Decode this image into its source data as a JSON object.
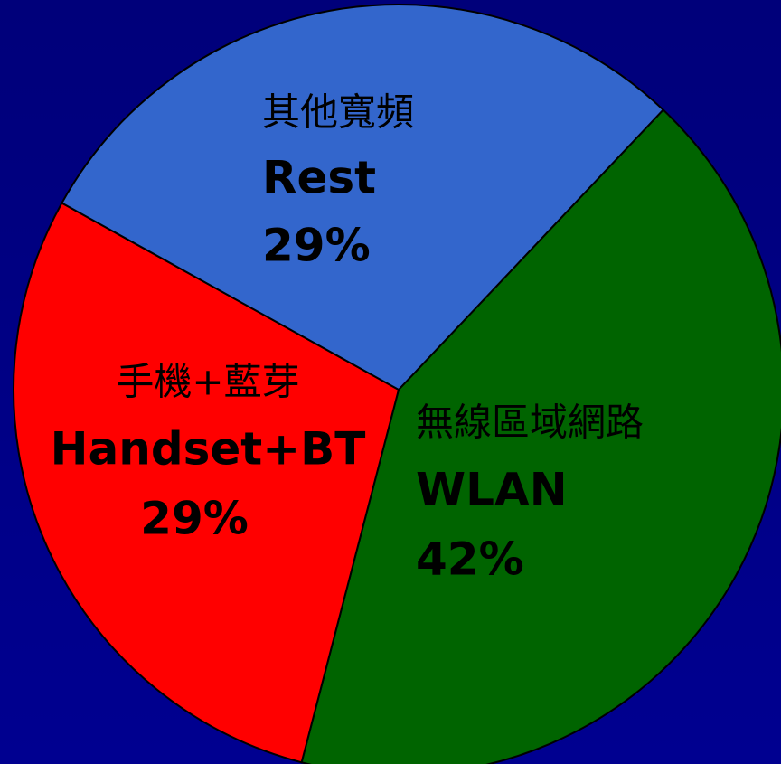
{
  "chart_data": {
    "type": "pie",
    "categories": [
      "WLAN",
      "Handset+BT",
      "Rest"
    ],
    "categories_zh": [
      "無線區域網路",
      "手機+藍芽",
      "其他寬頻"
    ],
    "values": [
      42,
      29,
      29
    ],
    "value_labels": [
      "42%",
      "29%",
      "29%"
    ],
    "colors": [
      "#006400",
      "#ff0000",
      "#3366cc"
    ]
  }
}
